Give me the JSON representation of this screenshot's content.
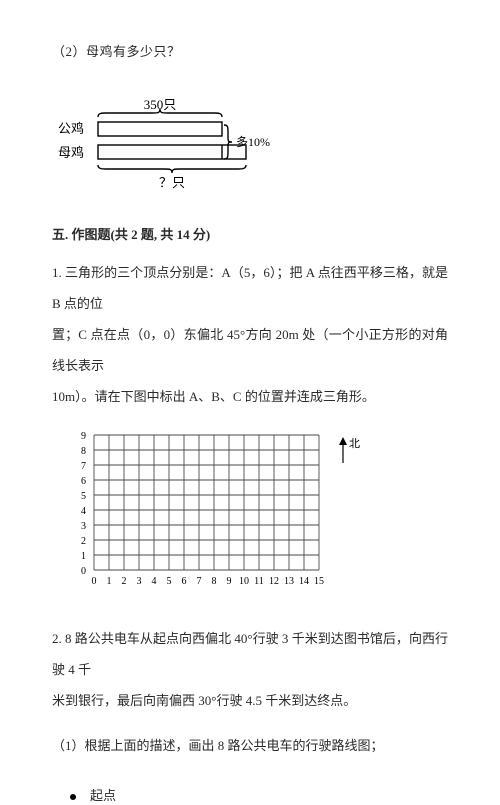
{
  "q_top": "（2）母鸡有多少只？",
  "diagram": {
    "top_label": "350只",
    "left_top": "公鸡",
    "left_bottom": "母鸡",
    "right_label": "多10%",
    "bottom_label": "？只",
    "stroke": "#000000",
    "stroke_width": 1.4,
    "font_size": 13
  },
  "section5": {
    "title": "五. 作图题(共 2 题, 共 14 分)",
    "q1_l1": "1. 三角形的三个顶点分别是：A（5，6）；把 A 点往西平移三格，就是 B 点的位",
    "q1_l2": "置；C 点在点（0，0）东偏北 45°方向 20m 处（一个小正方形的对角线长表示",
    "q1_l3": "10m）。请在下图中标出 A、B、C 的位置并连成三角形。",
    "grid": {
      "cols": 16,
      "rows": 10,
      "x_labels": [
        "0",
        "1",
        "2",
        "3",
        "4",
        "5",
        "6",
        "7",
        "8",
        "9",
        "10",
        "11",
        "12",
        "13",
        "14",
        "15"
      ],
      "y_labels": [
        "0",
        "1",
        "2",
        "3",
        "4",
        "5",
        "6",
        "7",
        "8",
        "9"
      ],
      "cell": 15,
      "stroke": "#4a4a4a",
      "stroke_width": 0.9,
      "font_size": 10,
      "north_label": "北"
    },
    "q2_l1": "2. 8 路公共电车从起点向西偏北 40°行驶 3 千米到达图书馆后，向西行驶 4 千",
    "q2_l2": "米到银行，最后向南偏西 30°行驶 4.5 千米到达终点。",
    "q2_sub1": "（1）根据上面的描述，画出 8 路公共电车的行驶路线图；",
    "route_start": "起点"
  }
}
